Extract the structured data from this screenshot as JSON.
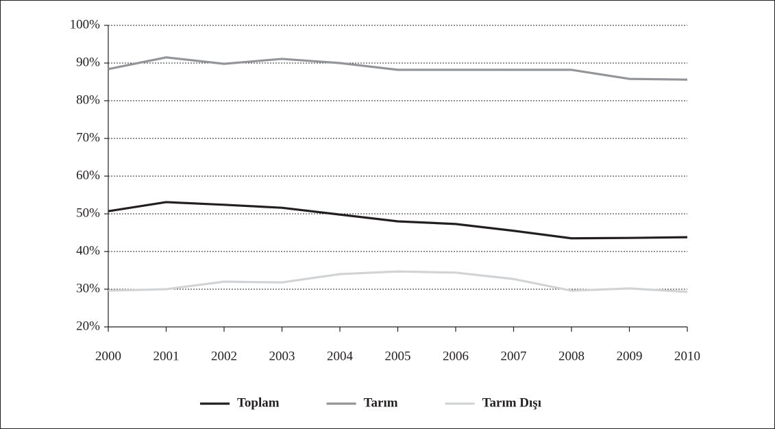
{
  "chart_data": {
    "type": "line",
    "x": [
      2000,
      2001,
      2002,
      2003,
      2004,
      2005,
      2006,
      2007,
      2008,
      2009,
      2010
    ],
    "series": [
      {
        "name": "Toplam",
        "color": "#231f20",
        "values": [
          50.7,
          53.1,
          52.4,
          51.6,
          49.8,
          48.0,
          47.3,
          45.5,
          43.5,
          43.6,
          43.8
        ]
      },
      {
        "name": "Tarım",
        "color": "#939598",
        "values": [
          88.4,
          91.5,
          89.8,
          91.1,
          90.0,
          88.2,
          88.2,
          88.2,
          88.2,
          85.8,
          85.6
        ]
      },
      {
        "name": "Tarım Dışı",
        "color": "#d1d3d4",
        "values": [
          29.6,
          30.0,
          32.0,
          31.8,
          34.0,
          34.7,
          34.4,
          32.7,
          29.6,
          30.2,
          29.3
        ]
      }
    ],
    "xlim": [
      2000,
      2010
    ],
    "xticks": [
      2000,
      2001,
      2002,
      2003,
      2004,
      2005,
      2006,
      2007,
      2008,
      2009,
      2010
    ],
    "ylim": [
      20,
      100
    ],
    "yticks": [
      {
        "value": 20,
        "label": "20%"
      },
      {
        "value": 30,
        "label": "30%"
      },
      {
        "value": 40,
        "label": "40%"
      },
      {
        "value": 50,
        "label": "50%"
      },
      {
        "value": 60,
        "label": "60%"
      },
      {
        "value": 70,
        "label": "70%"
      },
      {
        "value": 80,
        "label": "80%"
      },
      {
        "value": 90,
        "label": "90%"
      },
      {
        "value": 100,
        "label": "100%"
      }
    ],
    "grid": true,
    "legend": "bottom"
  }
}
